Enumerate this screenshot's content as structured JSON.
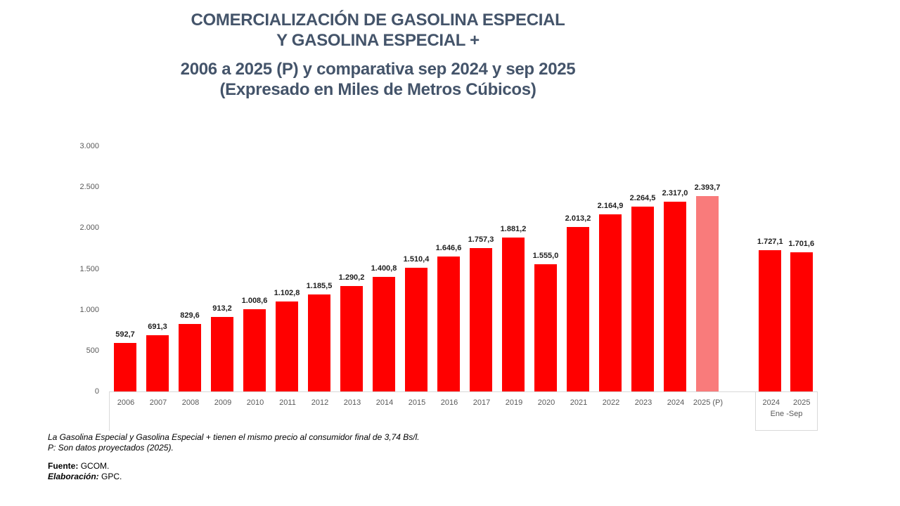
{
  "title": {
    "lines": [
      "COMERCIALIZACIÓN DE GASOLINA ESPECIAL",
      "Y GASOLINA ESPECIAL +",
      "2006 a 2025 (P) y comparativa sep 2024 y sep 2025",
      "(Expresado en Miles de Metros Cúbicos)"
    ],
    "color": "#44546A"
  },
  "chart_data": {
    "type": "bar",
    "title": "Comercialización de Gasolina Especial y Gasolina Especial + 2006 a 2025 (P) y comparativa sep 2024 y sep 2025",
    "ylabel": "Miles de Metros Cúbicos",
    "xlabel": "",
    "ylim": [
      0,
      3000
    ],
    "grid": false,
    "legend": "none",
    "yticks": [
      {
        "label": "3.000",
        "value": 3000
      },
      {
        "label": "2.500",
        "value": 2500
      },
      {
        "label": "2.000",
        "value": 2000
      },
      {
        "label": "1.500",
        "value": 1500
      },
      {
        "label": "1.000",
        "value": 1000
      },
      {
        "label": "500",
        "value": 500
      },
      {
        "label": "0",
        "value": 0
      }
    ],
    "bars": [
      {
        "category": "2006",
        "label": "592,7",
        "value": 592.7,
        "projected": false
      },
      {
        "category": "2007",
        "label": "691,3",
        "value": 691.3,
        "projected": false
      },
      {
        "category": "2008",
        "label": "829,6",
        "value": 829.6,
        "projected": false
      },
      {
        "category": "2009",
        "label": "913,2",
        "value": 913.2,
        "projected": false
      },
      {
        "category": "2010",
        "label": "1.008,6",
        "value": 1008.6,
        "projected": false
      },
      {
        "category": "2011",
        "label": "1.102,8",
        "value": 1102.8,
        "projected": false
      },
      {
        "category": "2012",
        "label": "1.185,5",
        "value": 1185.5,
        "projected": false
      },
      {
        "category": "2013",
        "label": "1.290,2",
        "value": 1290.2,
        "projected": false
      },
      {
        "category": "2014",
        "label": "1.400,8",
        "value": 1400.8,
        "projected": false
      },
      {
        "category": "2015",
        "label": "1.510,4",
        "value": 1510.4,
        "projected": false
      },
      {
        "category": "2016",
        "label": "1.646,6",
        "value": 1646.6,
        "projected": false
      },
      {
        "category": "2017",
        "label": "1.757,3",
        "value": 1757.3,
        "projected": false
      },
      {
        "category": "2019",
        "label": "1.881,2",
        "value": 1881.2,
        "projected": false
      },
      {
        "category": "2020",
        "label": "1.555,0",
        "value": 1555.0,
        "projected": false
      },
      {
        "category": "2021",
        "label": "2.013,2",
        "value": 2013.2,
        "projected": false
      },
      {
        "category": "2022",
        "label": "2.164,9",
        "value": 2164.9,
        "projected": false
      },
      {
        "category": "2023",
        "label": "2.264,5",
        "value": 2264.5,
        "projected": false
      },
      {
        "category": "2024",
        "label": "2.317,0",
        "value": 2317.0,
        "projected": false
      },
      {
        "category": "2025 (P)",
        "label": "2.393,7",
        "value": 2393.7,
        "projected": true
      }
    ],
    "comparison": {
      "group_label": "Ene -Sep",
      "bars": [
        {
          "category": "2024",
          "label": "1.727,1",
          "value": 1727.1,
          "projected": false
        },
        {
          "category": "2025",
          "label": "1.701,6",
          "value": 1701.6,
          "projected": false
        }
      ]
    },
    "colors": {
      "bar": "#FF0000",
      "projected": "#F97B7B",
      "axis_text": "#595959",
      "value_text": "#1F1F1F",
      "axis_line": "#D9D9D9"
    }
  },
  "footnotes": {
    "note1": "La Gasolina Especial y Gasolina Especial + tienen el mismo precio al consumidor final de 3,74 Bs/l.",
    "note2": "P: Son datos proyectados (2025).",
    "source_label": "Fuente:",
    "source_value": "GCOM.",
    "elaboration_label": "Elaboración:",
    "elaboration_value": "GPC."
  }
}
